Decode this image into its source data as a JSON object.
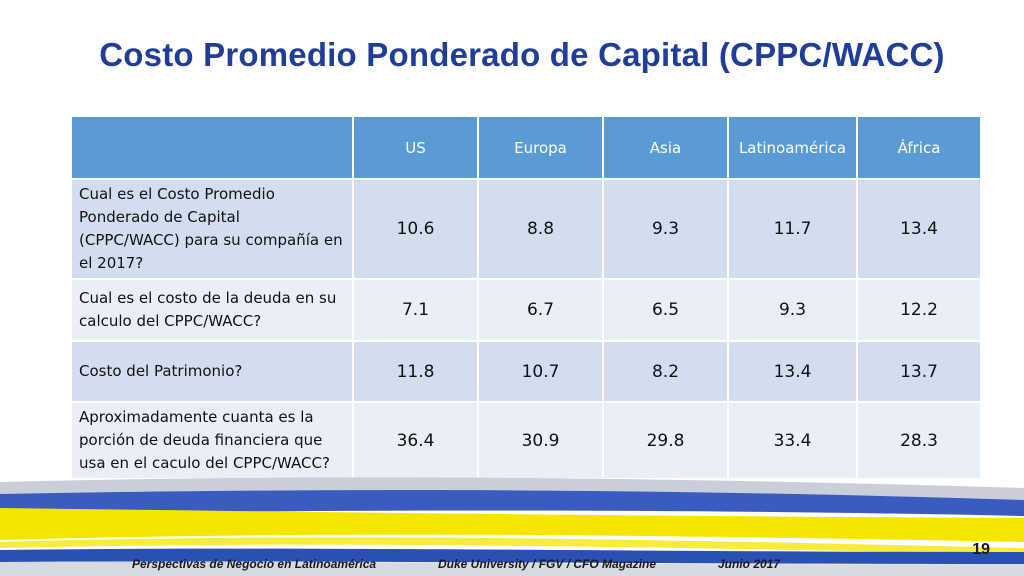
{
  "title": "Costo Promedio Ponderado de Capital (CPPC/WACC)",
  "table": {
    "corner": "",
    "columns": [
      "US",
      "Europa",
      "Asia",
      "Latinoamérica",
      "África"
    ],
    "rows": [
      {
        "question": "Cual es el Costo Promedio Ponderado de Capital (CPPC/WACC) para su compañía en el 2017?",
        "values": [
          "10.6",
          "8.8",
          "9.3",
          "11.7",
          "13.4"
        ]
      },
      {
        "question": "Cual es el costo de la deuda en su calculo del CPPC/WACC?",
        "values": [
          "7.1",
          "6.7",
          "6.5",
          "9.3",
          "12.2"
        ]
      },
      {
        "question": "Costo del Patrimonio?",
        "values": [
          "11.8",
          "10.7",
          "8.2",
          "13.4",
          "13.7"
        ]
      },
      {
        "question": "Aproximadamente cuanta es la porción de deuda financiera que usa en el caculo del CPPC/WACC?",
        "values": [
          "36.4",
          "30.9",
          "29.8",
          "33.4",
          "28.3"
        ]
      }
    ]
  },
  "footer": {
    "left": "Perspectivas de Negocio en Latinoamérica",
    "center": "Duke University / FGV / CFO Magazine",
    "right": "Junio 2017",
    "page": "19"
  },
  "colors": {
    "title": "#1f3d99",
    "header_bg": "#5b9bd5",
    "row_odd": "#d2deef",
    "row_even": "#eaeff7",
    "band_yellow": "#f5e600",
    "band_blue": "#2b50b3"
  }
}
